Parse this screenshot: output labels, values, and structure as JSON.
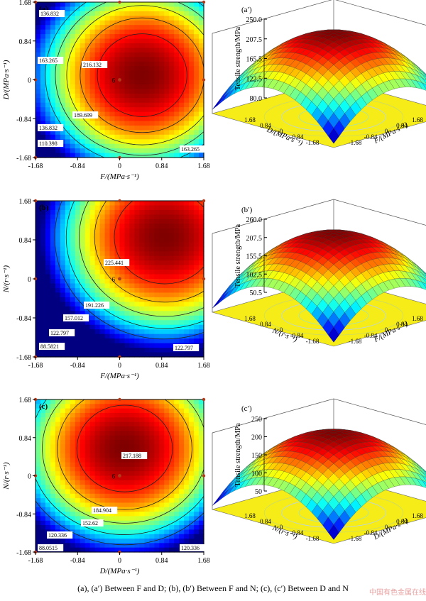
{
  "caption": "(a), (a′) Between F and D; (b), (b′) Between F  and N; (c), (c′) Between D and N",
  "watermark": "中国有色金属在线",
  "chart_data": [
    {
      "type": "heatmap",
      "panel": "(a)",
      "xlabel": "F/(MPa·s⁻¹)",
      "ylabel": "D/(MPa·s⁻¹)",
      "xticks": [
        "-1.68",
        "-0.84",
        "0",
        "0.84",
        "1.68"
      ],
      "yticks": [
        "1.68",
        "0.84",
        "0",
        "-0.84",
        "-1.68"
      ],
      "xlim": [
        -1.68,
        1.68
      ],
      "ylim": [
        -1.68,
        1.68
      ],
      "center": [
        0.45,
        0.1
      ],
      "peak": 245,
      "levels": [
        {
          "value": 110.398,
          "label": "110.398"
        },
        {
          "value": 136.832,
          "label": "136.832"
        },
        {
          "value": 163.265,
          "label": "163.265"
        },
        {
          "value": 189.699,
          "label": "189.699"
        },
        {
          "value": 216.132,
          "label": "216.132"
        }
      ],
      "contour_labels": [
        "136.832",
        "163.265",
        "216.132",
        "189.699",
        "136.832",
        "110.398",
        "163.265"
      ],
      "center_label": "6"
    },
    {
      "type": "surface",
      "panel": "(a′)",
      "zlabel": "Tensile strength/MPa",
      "zticks": [
        "250.0",
        "207.5",
        "165.5",
        "122.5",
        "80.0"
      ],
      "xlabel": "F/(MPa·s⁻¹)",
      "ylabel": "D/(MPa·s⁻¹)",
      "xticks": [
        "1.68",
        "0.84",
        "0",
        "-0.84",
        "-1.68"
      ],
      "yticks": [
        "1.68",
        "0.84",
        "0",
        "-0.84",
        "-1.68"
      ],
      "zlim": [
        80,
        250
      ]
    },
    {
      "type": "heatmap",
      "panel": "(b)",
      "xlabel": "F/(MPa·s⁻¹)",
      "ylabel": "N/(r·s⁻¹)",
      "xticks": [
        "-1.68",
        "-0.84",
        "0",
        "0.84",
        "1.68"
      ],
      "yticks": [
        "1.68",
        "0.84",
        "0",
        "-0.84",
        "-1.68"
      ],
      "xlim": [
        -1.68,
        1.68
      ],
      "ylim": [
        -1.68,
        1.68
      ],
      "center": [
        0.9,
        0.9
      ],
      "peak": 262,
      "levels": [
        {
          "value": 88.5821,
          "label": "88.5821"
        },
        {
          "value": 122.797,
          "label": "122.797"
        },
        {
          "value": 157.012,
          "label": "157.012"
        },
        {
          "value": 191.226,
          "label": "191.226"
        },
        {
          "value": 225.441,
          "label": "225.441"
        }
      ],
      "contour_labels": [
        "225.441",
        "191.226",
        "157.012",
        "122.797",
        "88.5821",
        "122.797"
      ],
      "center_label": "6"
    },
    {
      "type": "surface",
      "panel": "(b′)",
      "zlabel": "Tensile strength/MPa",
      "zticks": [
        "260.0",
        "207.5",
        "155.5",
        "102.5",
        "50.5"
      ],
      "xlabel": "F/(MPa·s⁻¹)",
      "ylabel": "N/(r·s⁻¹)",
      "xticks": [
        "1.68",
        "0.84",
        "0",
        "-0.84",
        "-1.68"
      ],
      "yticks": [
        "1.68",
        "0.84",
        "0",
        "-0.84",
        "-1.68"
      ],
      "zlim": [
        50.5,
        260
      ]
    },
    {
      "type": "heatmap",
      "panel": "(c)",
      "xlabel": "D/(MPa·s⁻¹)",
      "ylabel": "N/(r·s⁻¹)",
      "xticks": [
        "-1.68",
        "-0.84",
        "0",
        "0.84",
        "1.68"
      ],
      "yticks": [
        "1.68",
        "0.84",
        "0",
        "-0.84",
        "-1.68"
      ],
      "xlim": [
        -1.68,
        1.68
      ],
      "ylim": [
        -1.68,
        1.68
      ],
      "center": [
        0.1,
        0.6
      ],
      "peak": 250,
      "levels": [
        {
          "value": 88.0515,
          "label": "88.0515"
        },
        {
          "value": 120.336,
          "label": "120.336"
        },
        {
          "value": 152.62,
          "label": "152.62"
        },
        {
          "value": 184.904,
          "label": "184.904"
        },
        {
          "value": 217.188,
          "label": "217.188"
        }
      ],
      "contour_labels": [
        "217.188",
        "184.904",
        "152.62",
        "120.336",
        "88.0515",
        "120.336"
      ],
      "center_label": "6"
    },
    {
      "type": "surface",
      "panel": "(c′)",
      "zlabel": "Tensile strength/MPa",
      "zticks": [
        "250",
        "200",
        "150",
        "100",
        "50"
      ],
      "xlabel": "D/(MPa·s⁻¹)",
      "ylabel": "N/(r·s⁻¹)",
      "xticks": [
        "1.68",
        "0.84",
        "0",
        "-0.84",
        "-1.68"
      ],
      "yticks": [
        "1.68",
        "0.84",
        "0",
        "-0.84",
        "-1.68"
      ],
      "zlim": [
        50,
        250
      ]
    }
  ]
}
